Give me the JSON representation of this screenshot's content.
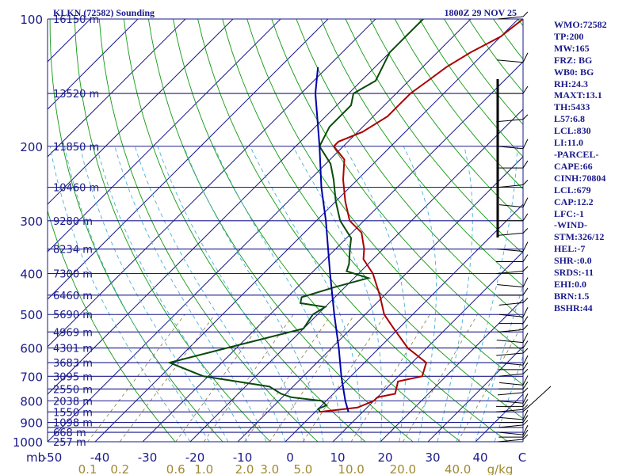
{
  "header": {
    "left_title": "KLKN (72582) Sounding",
    "right_title": "1800Z 29 NOV 25"
  },
  "indices": [
    "WMO:72582",
    "TP:200",
    "MW:165",
    "FRZ: BG",
    "WB0: BG",
    "RH:24.3",
    "MAXT:13.1",
    "TH:5433",
    "L57:6.8",
    "LCL:830",
    "LI:11.0",
    "-PARCEL-",
    "CAPE:66",
    "CINH:70804",
    "LCL:679",
    "CAP:12.2",
    "LFC:-1",
    "-WIND-",
    "STM:326/12",
    "HEL:-7",
    "SHR-:0.0",
    "SRDS:-11",
    "EHI:0.0",
    "BRN:1.5",
    "BSHR:44"
  ],
  "colors": {
    "isobar": "#1a1a8c",
    "isotherm": "#1a1a8c",
    "dry_adiabat": "#119911",
    "moist_adiabat": "#4ab0d8",
    "mixing_ratio": "#8a7a40",
    "temperature": "#aa0000",
    "dewpoint": "#0a4a0a",
    "parcel": "#0000aa",
    "wind": "#000000"
  },
  "chart_data": {
    "type": "line",
    "title": "KLKN (72582) Sounding 1800Z 29 NOV 25",
    "xlabel": "C",
    "ylabel": "mb",
    "xlim": [
      -50,
      50
    ],
    "ylim": [
      1000,
      100
    ],
    "pressure_labels": [
      "100",
      "200",
      "300",
      "400",
      "500",
      "600",
      "700",
      "800",
      "900",
      "1000"
    ],
    "pressure_levels": [
      100,
      200,
      300,
      400,
      500,
      600,
      700,
      800,
      900,
      1000
    ],
    "isobars": [
      100,
      150,
      200,
      250,
      300,
      350,
      400,
      450,
      500,
      550,
      600,
      650,
      700,
      750,
      800,
      850,
      900,
      925,
      950,
      1000
    ],
    "heights": [
      {
        "p": 100,
        "label": "16150 m"
      },
      {
        "p": 150,
        "label": "13520 m"
      },
      {
        "p": 200,
        "label": "11850 m"
      },
      {
        "p": 250,
        "label": "10460 m"
      },
      {
        "p": 300,
        "label": "9280 m"
      },
      {
        "p": 350,
        "label": "8234 m"
      },
      {
        "p": 400,
        "label": "7300 m"
      },
      {
        "p": 450,
        "label": "6460 m"
      },
      {
        "p": 500,
        "label": "5690 m"
      },
      {
        "p": 550,
        "label": "4969 m"
      },
      {
        "p": 600,
        "label": "4301 m"
      },
      {
        "p": 650,
        "label": "3683 m"
      },
      {
        "p": 700,
        "label": "3095 m"
      },
      {
        "p": 750,
        "label": "2550 m"
      },
      {
        "p": 800,
        "label": "2038 m"
      },
      {
        "p": 850,
        "label": "1550 m"
      },
      {
        "p": 900,
        "label": "1098 m"
      },
      {
        "p": 950,
        "label": "668 m"
      },
      {
        "p": 1000,
        "label": "257 m"
      }
    ],
    "temp_ticks": [
      -50,
      -40,
      -30,
      -20,
      -10,
      0,
      10,
      20,
      30,
      40
    ],
    "temp_tick_labels": [
      "-50",
      "-40",
      "-30",
      "-20",
      "-10",
      "0",
      "10",
      "20",
      "30",
      "40"
    ],
    "mixing_ratio_values": [
      0.1,
      0.2,
      0.6,
      1.0,
      2.0,
      3.0,
      5.0,
      10.0,
      20.0,
      40.0
    ],
    "mixing_ratio_labels": [
      "0.1",
      "0.2",
      "0.6",
      "1.0",
      "2.0",
      "3.0",
      "5.0",
      "10.0",
      "20.0",
      "40.0"
    ],
    "mixing_ratio_unit": "g/kg",
    "temperature_label": "C",
    "pressure_unit": "mb",
    "series": [
      {
        "name": "Temperature",
        "points": [
          [
            850,
            1
          ],
          [
            830,
            8
          ],
          [
            800,
            10
          ],
          [
            785,
            10
          ],
          [
            770,
            13
          ],
          [
            720,
            11
          ],
          [
            700,
            15
          ],
          [
            650,
            13
          ],
          [
            600,
            6
          ],
          [
            540,
            -1
          ],
          [
            500,
            -6
          ],
          [
            450,
            -11
          ],
          [
            400,
            -17
          ],
          [
            370,
            -22
          ],
          [
            350,
            -24
          ],
          [
            320,
            -28
          ],
          [
            300,
            -33
          ],
          [
            270,
            -38
          ],
          [
            240,
            -43
          ],
          [
            215,
            -47
          ],
          [
            200,
            -52
          ],
          [
            195,
            -52
          ],
          [
            185,
            -49
          ],
          [
            170,
            -47
          ],
          [
            150,
            -47
          ],
          [
            140,
            -46
          ],
          [
            130,
            -45
          ],
          [
            120,
            -43
          ],
          [
            110,
            -40
          ],
          [
            100,
            -39
          ]
        ]
      },
      {
        "name": "Dewpoint",
        "points": [
          [
            850,
            1
          ],
          [
            835,
            0
          ],
          [
            820,
            1
          ],
          [
            800,
            -1
          ],
          [
            785,
            -8
          ],
          [
            770,
            -11
          ],
          [
            740,
            -15
          ],
          [
            700,
            -31
          ],
          [
            650,
            -41
          ],
          [
            600,
            -32
          ],
          [
            540,
            -20
          ],
          [
            500,
            -21
          ],
          [
            480,
            -20
          ],
          [
            470,
            -26
          ],
          [
            455,
            -27
          ],
          [
            430,
            -22
          ],
          [
            410,
            -17
          ],
          [
            395,
            -23
          ],
          [
            380,
            -24
          ],
          [
            350,
            -27
          ],
          [
            330,
            -29
          ],
          [
            300,
            -35
          ],
          [
            270,
            -40
          ],
          [
            240,
            -45
          ],
          [
            220,
            -49
          ],
          [
            200,
            -55
          ],
          [
            180,
            -57
          ],
          [
            160,
            -57
          ],
          [
            150,
            -59
          ],
          [
            140,
            -57
          ],
          [
            120,
            -60
          ],
          [
            110,
            -60
          ],
          [
            100,
            -60
          ]
        ]
      },
      {
        "name": "Parcel",
        "points": [
          [
            850,
            7
          ],
          [
            800,
            4
          ],
          [
            700,
            -2
          ],
          [
            600,
            -8.5
          ],
          [
            500,
            -16.5
          ],
          [
            400,
            -26
          ],
          [
            300,
            -38
          ],
          [
            250,
            -46
          ],
          [
            200,
            -55
          ],
          [
            150,
            -67
          ],
          [
            130,
            -72
          ]
        ]
      }
    ],
    "wind_profile": "barbs at right margin, surface to 100 mb"
  }
}
